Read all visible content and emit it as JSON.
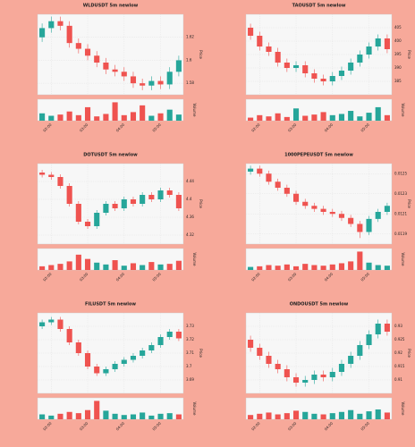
{
  "chart_data": [
    {
      "type": "candlestick",
      "title": "WLDUSDT 5m newlow",
      "ylabel": "Price",
      "vlabel": "Volume",
      "up_color": "#26a69a",
      "down_color": "#ef5350",
      "grid": true,
      "ylim": [
        1.57,
        1.64
      ],
      "yticks": [
        1.58,
        1.6,
        1.62
      ],
      "xticks": [
        {
          "value": 1,
          "label": "02:00"
        },
        {
          "value": 5,
          "label": "03:00"
        },
        {
          "value": 9,
          "label": "04:00"
        },
        {
          "value": 13,
          "label": "05:00"
        }
      ],
      "open": [
        1.62,
        1.628,
        1.634,
        1.63,
        1.615,
        1.61,
        1.604,
        1.598,
        1.592,
        1.59,
        1.586,
        1.58,
        1.578,
        1.582,
        1.579,
        1.59
      ],
      "close": [
        1.628,
        1.634,
        1.63,
        1.615,
        1.61,
        1.604,
        1.598,
        1.592,
        1.59,
        1.586,
        1.58,
        1.578,
        1.582,
        1.579,
        1.59,
        1.6
      ],
      "high": [
        1.632,
        1.638,
        1.638,
        1.634,
        1.619,
        1.614,
        1.608,
        1.602,
        1.596,
        1.594,
        1.59,
        1.584,
        1.586,
        1.586,
        1.594,
        1.604
      ],
      "low": [
        1.616,
        1.624,
        1.626,
        1.611,
        1.606,
        1.6,
        1.594,
        1.588,
        1.586,
        1.582,
        1.576,
        1.574,
        1.574,
        1.575,
        1.575,
        1.586
      ],
      "volume": [
        12,
        8,
        10,
        15,
        9,
        22,
        7,
        11,
        30,
        9,
        14,
        25,
        8,
        12,
        18,
        10
      ],
      "vlim": [
        0,
        35
      ]
    },
    {
      "type": "candlestick",
      "title": "TAOUSDT 5m newlow",
      "ylabel": "Price",
      "vlabel": "Volume",
      "up_color": "#26a69a",
      "down_color": "#ef5350",
      "grid": true,
      "ylim": [
        380,
        410
      ],
      "yticks": [
        385,
        390,
        395,
        400,
        405
      ],
      "xticks": [
        {
          "value": 1,
          "label": "02:00"
        },
        {
          "value": 5,
          "label": "03:00"
        },
        {
          "value": 9,
          "label": "04:00"
        },
        {
          "value": 13,
          "label": "05:00"
        }
      ],
      "open": [
        405,
        402,
        398,
        396,
        392,
        390,
        391,
        388,
        386,
        385,
        387,
        389,
        392,
        395,
        398,
        401
      ],
      "close": [
        402,
        398,
        396,
        392,
        390,
        391,
        388,
        386,
        385,
        387,
        389,
        392,
        395,
        398,
        401,
        397
      ],
      "high": [
        406.5,
        403.5,
        399.5,
        397.5,
        393.5,
        392.5,
        392.5,
        389.5,
        387.5,
        388.5,
        390.5,
        393.5,
        396.5,
        399.5,
        402.5,
        402.5
      ],
      "low": [
        400.5,
        396.5,
        394.5,
        390.5,
        388.5,
        388.5,
        386.5,
        384.5,
        383.5,
        383.5,
        385.5,
        387.5,
        390.5,
        393.5,
        396.5,
        395.5
      ],
      "volume": [
        5,
        9,
        7,
        12,
        6,
        20,
        8,
        10,
        14,
        9,
        11,
        16,
        7,
        13,
        22,
        9
      ],
      "vlim": [
        0,
        35
      ]
    },
    {
      "type": "candlestick",
      "title": "DOTUSDT 5m newlow",
      "ylabel": "Price",
      "vlabel": "Volume",
      "up_color": "#26a69a",
      "down_color": "#ef5350",
      "grid": true,
      "ylim": [
        4.3,
        4.48
      ],
      "yticks": [
        4.32,
        4.36,
        4.4,
        4.44
      ],
      "xticks": [
        {
          "value": 1,
          "label": "02:00"
        },
        {
          "value": 5,
          "label": "03:00"
        },
        {
          "value": 9,
          "label": "04:00"
        },
        {
          "value": 13,
          "label": "05:00"
        }
      ],
      "open": [
        4.46,
        4.455,
        4.45,
        4.43,
        4.39,
        4.35,
        4.34,
        4.37,
        4.39,
        4.38,
        4.4,
        4.39,
        4.41,
        4.4,
        4.42,
        4.41
      ],
      "close": [
        4.455,
        4.45,
        4.43,
        4.39,
        4.35,
        4.34,
        4.37,
        4.39,
        4.38,
        4.4,
        4.39,
        4.41,
        4.4,
        4.42,
        4.41,
        4.38
      ],
      "high": [
        4.466,
        4.461,
        4.456,
        4.436,
        4.396,
        4.356,
        4.376,
        4.396,
        4.396,
        4.406,
        4.406,
        4.416,
        4.416,
        4.426,
        4.426,
        4.416
      ],
      "low": [
        4.449,
        4.444,
        4.424,
        4.384,
        4.344,
        4.334,
        4.334,
        4.364,
        4.374,
        4.374,
        4.384,
        4.384,
        4.394,
        4.394,
        4.404,
        4.374
      ],
      "volume": [
        6,
        8,
        10,
        14,
        25,
        18,
        12,
        9,
        16,
        7,
        11,
        8,
        13,
        9,
        10,
        15
      ],
      "vlim": [
        0,
        35
      ]
    },
    {
      "type": "candlestick",
      "title": "1000PEPEUSDT 5m newlow",
      "ylabel": "Price",
      "vlabel": "Volume",
      "up_color": "#26a69a",
      "down_color": "#ef5350",
      "grid": true,
      "ylim": [
        0.0118,
        0.0126
      ],
      "yticks": [
        0.0119,
        0.0121,
        0.0123,
        0.0125
      ],
      "xticks": [
        {
          "value": 1,
          "label": "02:00"
        },
        {
          "value": 5,
          "label": "03:00"
        },
        {
          "value": 9,
          "label": "04:00"
        },
        {
          "value": 13,
          "label": "05:00"
        }
      ],
      "open": [
        0.01252,
        0.01255,
        0.0125,
        0.01242,
        0.01236,
        0.0123,
        0.01222,
        0.01218,
        0.01215,
        0.01212,
        0.0121,
        0.01206,
        0.012,
        0.01192,
        0.01205,
        0.01212
      ],
      "close": [
        0.01255,
        0.0125,
        0.01242,
        0.01236,
        0.0123,
        0.01222,
        0.01218,
        0.01215,
        0.01212,
        0.0121,
        0.01206,
        0.012,
        0.01192,
        0.01205,
        0.01212,
        0.01218
      ],
      "high": [
        0.01258,
        0.01258,
        0.01253,
        0.01245,
        0.01239,
        0.01233,
        0.01225,
        0.01221,
        0.01218,
        0.01215,
        0.01213,
        0.01209,
        0.01203,
        0.01208,
        0.01215,
        0.01221
      ],
      "low": [
        0.01249,
        0.01247,
        0.01239,
        0.01233,
        0.01227,
        0.01219,
        0.01215,
        0.01212,
        0.01209,
        0.01207,
        0.01203,
        0.01197,
        0.01186,
        0.01189,
        0.01202,
        0.01209
      ],
      "volume": [
        5,
        6,
        8,
        7,
        9,
        6,
        10,
        8,
        7,
        9,
        11,
        14,
        30,
        12,
        8,
        7
      ],
      "vlim": [
        0,
        35
      ]
    },
    {
      "type": "candlestick",
      "title": "FILUSDT 5m newlow",
      "ylabel": "Price",
      "vlabel": "Volume",
      "up_color": "#26a69a",
      "down_color": "#ef5350",
      "grid": true,
      "ylim": [
        3.68,
        3.74
      ],
      "yticks": [
        3.69,
        3.7,
        3.71,
        3.72,
        3.73
      ],
      "xticks": [
        {
          "value": 1,
          "label": "02:00"
        },
        {
          "value": 5,
          "label": "03:00"
        },
        {
          "value": 9,
          "label": "04:00"
        },
        {
          "value": 13,
          "label": "05:00"
        }
      ],
      "open": [
        3.73,
        3.733,
        3.735,
        3.728,
        3.718,
        3.71,
        3.7,
        3.695,
        3.698,
        3.702,
        3.705,
        3.708,
        3.712,
        3.716,
        3.722,
        3.726
      ],
      "close": [
        3.733,
        3.735,
        3.728,
        3.718,
        3.71,
        3.7,
        3.695,
        3.698,
        3.702,
        3.705,
        3.708,
        3.712,
        3.716,
        3.722,
        3.726,
        3.721
      ],
      "high": [
        3.735,
        3.737,
        3.737,
        3.73,
        3.72,
        3.712,
        3.702,
        3.7,
        3.704,
        3.707,
        3.71,
        3.714,
        3.718,
        3.724,
        3.728,
        3.728
      ],
      "low": [
        3.728,
        3.731,
        3.726,
        3.716,
        3.708,
        3.698,
        3.693,
        3.693,
        3.696,
        3.7,
        3.703,
        3.706,
        3.71,
        3.714,
        3.72,
        3.719
      ],
      "volume": [
        8,
        6,
        9,
        12,
        10,
        15,
        30,
        14,
        9,
        7,
        8,
        11,
        6,
        9,
        10,
        8
      ],
      "vlim": [
        0,
        35
      ]
    },
    {
      "type": "candlestick",
      "title": "ONDOUSDT 5m newlow",
      "ylabel": "Price",
      "vlabel": "Volume",
      "up_color": "#26a69a",
      "down_color": "#ef5350",
      "grid": true,
      "ylim": [
        0.905,
        0.935
      ],
      "yticks": [
        0.91,
        0.915,
        0.92,
        0.925,
        0.93
      ],
      "xticks": [
        {
          "value": 1,
          "label": "02:00"
        },
        {
          "value": 5,
          "label": "03:00"
        },
        {
          "value": 9,
          "label": "04:00"
        },
        {
          "value": 13,
          "label": "05:00"
        }
      ],
      "open": [
        0.925,
        0.922,
        0.919,
        0.916,
        0.914,
        0.911,
        0.909,
        0.91,
        0.912,
        0.911,
        0.913,
        0.916,
        0.919,
        0.923,
        0.927,
        0.931
      ],
      "close": [
        0.922,
        0.919,
        0.916,
        0.914,
        0.911,
        0.909,
        0.91,
        0.912,
        0.911,
        0.913,
        0.916,
        0.919,
        0.923,
        0.927,
        0.931,
        0.928
      ],
      "high": [
        0.9265,
        0.9235,
        0.9205,
        0.9175,
        0.9155,
        0.9125,
        0.9115,
        0.9135,
        0.9135,
        0.9145,
        0.9175,
        0.9205,
        0.9245,
        0.9285,
        0.9325,
        0.9325
      ],
      "low": [
        0.9205,
        0.9175,
        0.9145,
        0.9125,
        0.9095,
        0.9075,
        0.9075,
        0.9085,
        0.9095,
        0.9095,
        0.9115,
        0.9145,
        0.9175,
        0.9215,
        0.9255,
        0.9265
      ],
      "volume": [
        7,
        9,
        11,
        8,
        10,
        14,
        12,
        9,
        8,
        10,
        12,
        15,
        9,
        13,
        16,
        11
      ],
      "vlim": [
        0,
        35
      ]
    }
  ]
}
